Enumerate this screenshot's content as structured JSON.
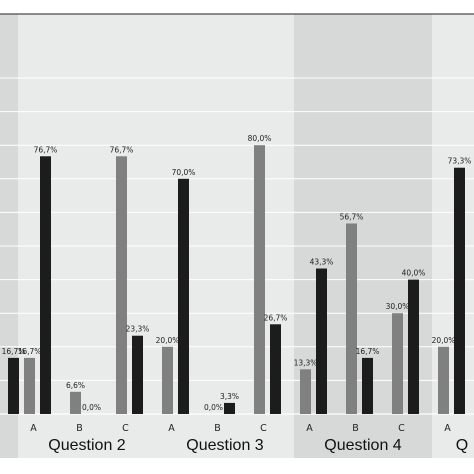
{
  "chart_data": {
    "type": "bar",
    "ylim": [
      0,
      100
    ],
    "y_gridlines": true,
    "colors": {
      "series_a": "#808080",
      "series_b": "#1c1c1c",
      "panel_light": "#e9ebea",
      "panel_dark": "#d6d9d8",
      "gridline": "#ffffff"
    },
    "groups": [
      {
        "label": "",
        "categories": [
          {
            "label": "",
            "values": [
              null,
              16.7
            ],
            "labels": [
              "",
              "16,7%"
            ]
          }
        ]
      },
      {
        "label": "Question 2",
        "categories": [
          {
            "label": "A",
            "values": [
              16.7,
              76.7
            ],
            "labels": [
              "16,7%",
              "76,7%"
            ]
          },
          {
            "label": "B",
            "values": [
              6.6,
              0.0
            ],
            "labels": [
              "6,6%",
              "0,0%"
            ]
          },
          {
            "label": "C",
            "values": [
              76.7,
              23.3
            ],
            "labels": [
              "76,7%",
              "23,3%"
            ]
          }
        ]
      },
      {
        "label": "Question 3",
        "categories": [
          {
            "label": "A",
            "values": [
              20.0,
              70.0
            ],
            "labels": [
              "20,0%",
              "70,0%"
            ]
          },
          {
            "label": "B",
            "values": [
              0.0,
              3.3
            ],
            "labels": [
              "0,0%",
              "3,3%"
            ]
          },
          {
            "label": "C",
            "values": [
              80.0,
              26.7
            ],
            "labels": [
              "80,0%",
              "26,7%"
            ]
          }
        ]
      },
      {
        "label": "Question 4",
        "categories": [
          {
            "label": "A",
            "values": [
              13.3,
              43.3
            ],
            "labels": [
              "13,3%",
              "43,3%"
            ]
          },
          {
            "label": "B",
            "values": [
              56.7,
              16.7
            ],
            "labels": [
              "56,7%",
              "16,7%"
            ]
          },
          {
            "label": "C",
            "values": [
              30.0,
              40.0
            ],
            "labels": [
              "30,0%",
              "40,0%"
            ]
          }
        ]
      },
      {
        "label": "Q",
        "categories": [
          {
            "label": "A",
            "values": [
              20.0,
              73.3
            ],
            "labels": [
              "20,0%",
              "73,3%"
            ]
          }
        ]
      }
    ]
  }
}
